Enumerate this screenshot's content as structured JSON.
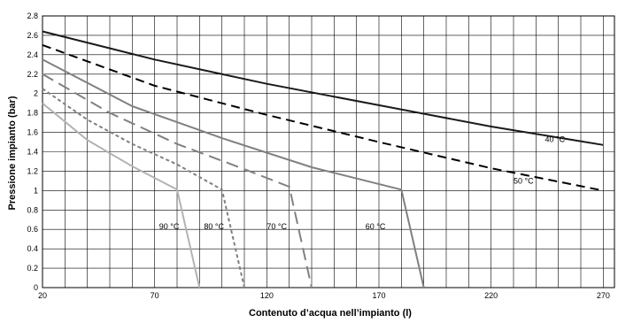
{
  "chart_data": {
    "type": "line",
    "title": "",
    "xlabel": "Contenuto d’acqua nell’impianto (l)",
    "ylabel": "Pressione impianto (bar)",
    "xlim": [
      20,
      275
    ],
    "ylim": [
      0,
      2.8
    ],
    "x_ticks": [
      "20",
      "70",
      "120",
      "170",
      "220",
      "270"
    ],
    "x_tick_values": [
      20,
      70,
      120,
      170,
      220,
      270
    ],
    "y_ticks": [
      "0",
      "0.2",
      "0.4",
      "0.6",
      "0.8",
      "1",
      "1.2",
      "1.4",
      "1.6",
      "1.8",
      "2",
      "2.2",
      "2.4",
      "2.6",
      "2.8"
    ],
    "y_tick_values": [
      0,
      0.2,
      0.4,
      0.6,
      0.8,
      1,
      1.2,
      1.4,
      1.6,
      1.8,
      2,
      2.2,
      2.4,
      2.6,
      2.8
    ],
    "grid": true,
    "series": [
      {
        "name": "40 °C",
        "style": "solid",
        "color": "#1a1a1a",
        "points": [
          [
            20,
            2.64
          ],
          [
            70,
            2.35
          ],
          [
            120,
            2.1
          ],
          [
            170,
            1.88
          ],
          [
            220,
            1.66
          ],
          [
            270,
            1.47
          ]
        ]
      },
      {
        "name": "50 °C",
        "style": "dashed",
        "color": "#000000",
        "points": [
          [
            20,
            2.5
          ],
          [
            70,
            2.08
          ],
          [
            120,
            1.78
          ],
          [
            170,
            1.5
          ],
          [
            220,
            1.23
          ],
          [
            270,
            1.0
          ]
        ]
      },
      {
        "name": "60 °C",
        "style": "solid",
        "color": "#808080",
        "points": [
          [
            20,
            2.35
          ],
          [
            60,
            1.87
          ],
          [
            100,
            1.54
          ],
          [
            140,
            1.24
          ],
          [
            180,
            1.01
          ],
          [
            190,
            0
          ]
        ]
      },
      {
        "name": "70 °C",
        "style": "longdash",
        "color": "#808080",
        "points": [
          [
            20,
            2.2
          ],
          [
            50,
            1.8
          ],
          [
            80,
            1.48
          ],
          [
            110,
            1.22
          ],
          [
            130,
            1.04
          ],
          [
            140,
            0
          ]
        ]
      },
      {
        "name": "80 °C",
        "style": "shortdash",
        "color": "#808080",
        "points": [
          [
            20,
            2.05
          ],
          [
            40,
            1.73
          ],
          [
            60,
            1.48
          ],
          [
            80,
            1.27
          ],
          [
            100,
            1.01
          ],
          [
            110,
            0
          ]
        ]
      },
      {
        "name": "90 °C",
        "style": "solid",
        "color": "#b3b3b3",
        "points": [
          [
            20,
            1.9
          ],
          [
            40,
            1.52
          ],
          [
            60,
            1.25
          ],
          [
            80,
            1.01
          ],
          [
            90,
            0
          ]
        ]
      }
    ],
    "series_label_positions": [
      {
        "name": "40 °C",
        "x": 244,
        "y": 1.5
      },
      {
        "name": "50 °C",
        "x": 230,
        "y": 1.07
      },
      {
        "name": "60 °C",
        "x": 164,
        "y": 0.6
      },
      {
        "name": "70 °C",
        "x": 120,
        "y": 0.6
      },
      {
        "name": "80 °C",
        "x": 92,
        "y": 0.6
      },
      {
        "name": "90 °C",
        "x": 72,
        "y": 0.6
      }
    ]
  }
}
